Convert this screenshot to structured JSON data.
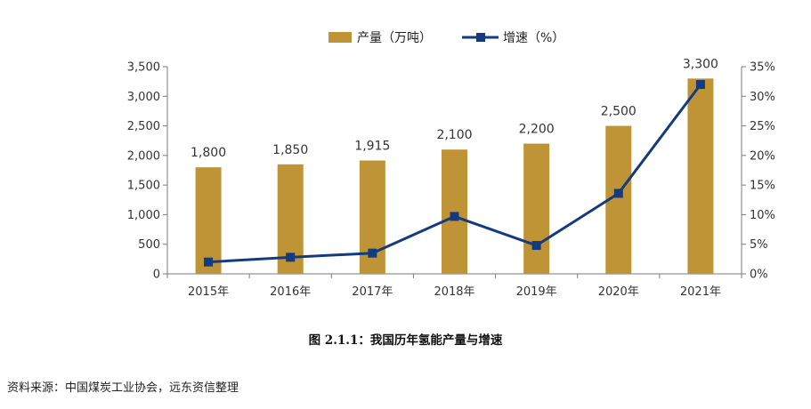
{
  "chart_data": {
    "type": "bar",
    "categories": [
      "2015年",
      "2016年",
      "2017年",
      "2018年",
      "2019年",
      "2020年",
      "2021年"
    ],
    "series": [
      {
        "name": "产量（万吨）",
        "type": "bar",
        "axis": "left",
        "values": [
          1800,
          1850,
          1915,
          2100,
          2200,
          2500,
          3300
        ],
        "value_labels": [
          "1,800",
          "1,850",
          "1,915",
          "2,100",
          "2,200",
          "2,500",
          "3,300"
        ],
        "color": "#BE9437"
      },
      {
        "name": "增速（%）",
        "type": "line",
        "axis": "right",
        "values": [
          2.0,
          2.8,
          3.5,
          9.7,
          4.8,
          13.6,
          32.0
        ],
        "color": "#143B7D"
      }
    ],
    "y_left": {
      "ylim": [
        0,
        3500
      ],
      "ticks": [
        0,
        500,
        1000,
        1500,
        2000,
        2500,
        3000,
        3500
      ],
      "tick_labels": [
        "0",
        "500",
        "1,000",
        "1,500",
        "2,000",
        "2,500",
        "3,000",
        "3,500"
      ]
    },
    "y_right": {
      "ylim": [
        0,
        35
      ],
      "ticks": [
        0,
        5,
        10,
        15,
        20,
        25,
        30,
        35
      ],
      "tick_labels": [
        "0%",
        "5%",
        "10%",
        "15%",
        "20%",
        "25%",
        "30%",
        "35%"
      ]
    },
    "grid": false,
    "legend": "top-center"
  },
  "caption": "图 2.1.1：我国历年氢能产量与增速",
  "source": "资料来源：中国煤炭工业协会，远东资信整理"
}
